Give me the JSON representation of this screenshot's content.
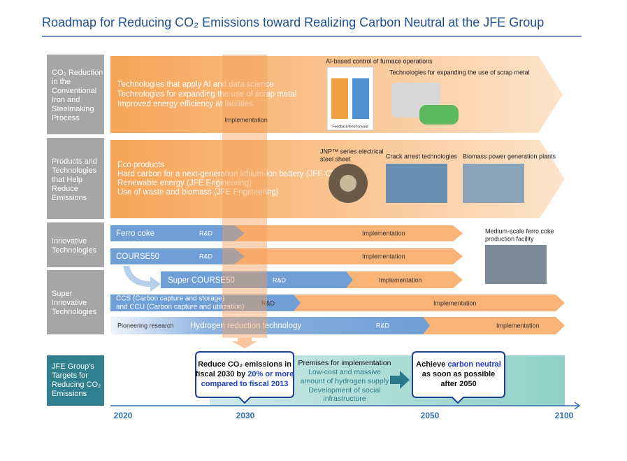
{
  "header": {
    "title": "Roadmap for Reducing CO₂ Emissions toward Realizing Carbon Neutral at the JFE Group"
  },
  "categories": [
    {
      "label": [
        "CO₂ Reduction",
        "in the",
        "Conventional",
        "Iron and",
        "Steelmaking",
        "Process"
      ]
    },
    {
      "label": [
        "Products and",
        "Technologies",
        "that Help",
        "Reduce",
        "Emissions"
      ]
    },
    {
      "label": [
        "Innovative",
        "Technologies"
      ]
    },
    {
      "label": [
        "Super",
        "Innovative",
        "Technologies"
      ]
    }
  ],
  "conventional": {
    "items": [
      "Technologies that apply AI and data science",
      "Technologies for expanding the use of scrap metal",
      "Improved energy efficiency at facilities"
    ],
    "phase": "Implementation",
    "images": [
      "AI-based control of furnace operations",
      "Technologies for expanding the use of scrap metal"
    ],
    "inset": "Feedback/feed forward"
  },
  "products": {
    "items": [
      "Eco products",
      "Hard carbon for a next-generation lithium-ion battery (JFE Chemical)",
      "Renewable energy (JFE Engineering)",
      "Use of waste and biomass (JFE Engineering)"
    ],
    "images": [
      [
        "JNP™ series electrical",
        "steel sheet"
      ],
      [
        "Crack arrest technologies"
      ],
      [
        "Biomass power generation plants"
      ]
    ]
  },
  "innovative": {
    "bars": [
      {
        "name": "Ferro coke",
        "rd": "R&D",
        "impl": "Implementation"
      },
      {
        "name": "COURSE50",
        "rd": "R&D",
        "impl": "Implementation"
      }
    ],
    "image": [
      "Medium-scale ferro coke",
      "production facility"
    ]
  },
  "super": {
    "bars": [
      {
        "name": [
          "Super COURSE50"
        ],
        "rd": "R&D",
        "impl": "Implementation"
      },
      {
        "name": [
          "CCS (Carbon capture and storage)",
          "and CCU (Carbon capture and utilization)"
        ],
        "rd": "R&D",
        "impl": "Implementation"
      },
      {
        "pre": "Pioneering research",
        "name": [
          "Hydrogen reduction technology"
        ],
        "rd": "R&D",
        "impl": "Implementation"
      }
    ]
  },
  "targets": {
    "label": [
      "JFE Group's",
      "Targets for",
      "Reducing CO₂",
      "Emissions"
    ],
    "goal_2030": {
      "line1": "Reduce CO₂ emissions in",
      "line2": "fiscal 2030 by",
      "highlight": [
        "20% or more",
        "compared to fiscal 2013"
      ]
    },
    "premises": {
      "title": "Premises for implementation",
      "lines": [
        "Low-cost and massive",
        "amount of hydrogen supply",
        "Development of social",
        "infrastructure"
      ]
    },
    "goal_2050": {
      "line1": "Achieve",
      "highlight": "carbon neutral",
      "rest": [
        "as soon as possible",
        "after 2050"
      ]
    }
  },
  "timeline": {
    "years": [
      "2020",
      "2030",
      "2050",
      "2100"
    ]
  }
}
